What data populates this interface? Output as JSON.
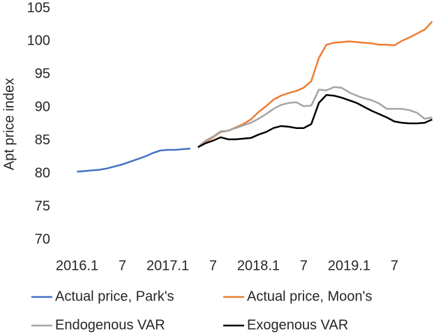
{
  "chart_data": {
    "type": "line",
    "y_label": "Apt price index",
    "categories": [
      "2016.1",
      null,
      null,
      null,
      null,
      null,
      "7",
      null,
      null,
      null,
      null,
      null,
      "2017.1",
      null,
      null,
      null,
      null,
      null,
      "7",
      null,
      null,
      null,
      null,
      null,
      "2018.1",
      null,
      null,
      null,
      null,
      null,
      "7",
      null,
      null,
      null,
      null,
      null,
      "2019.1",
      null,
      null,
      null,
      null,
      null,
      "7",
      null,
      null,
      null,
      null,
      null
    ],
    "ylim": [
      70,
      105
    ],
    "yticks": [
      70,
      75,
      80,
      85,
      90,
      95,
      100,
      105
    ],
    "grid": false,
    "series": [
      {
        "name": "Actual price, Park's",
        "color": "#4472c4",
        "values": [
          80.3,
          80.4,
          80.5,
          80.6,
          80.8,
          81.1,
          81.4,
          81.8,
          82.2,
          82.6,
          83.1,
          83.5,
          83.6,
          83.6,
          83.7,
          83.8,
          null,
          null,
          null,
          null,
          null,
          null,
          null,
          null,
          null,
          null,
          null,
          null,
          null,
          null,
          null,
          null,
          null,
          null,
          null,
          null,
          null,
          null,
          null,
          null,
          null,
          null,
          null,
          null,
          null,
          null,
          null,
          null
        ]
      },
      {
        "name": "Actual price, Moon's",
        "color": "#ed7d31",
        "values": [
          null,
          null,
          null,
          null,
          null,
          null,
          null,
          null,
          null,
          null,
          null,
          null,
          null,
          null,
          null,
          null,
          84.0,
          84.8,
          85.5,
          86.3,
          86.5,
          87.0,
          87.5,
          88.2,
          89.3,
          90.2,
          91.2,
          91.8,
          92.2,
          92.5,
          93.0,
          94.0,
          97.5,
          99.5,
          99.8,
          99.9,
          100.0,
          99.9,
          99.8,
          99.7,
          99.5,
          99.5,
          99.4,
          100.1,
          100.6,
          101.2,
          101.8,
          103.0
        ]
      },
      {
        "name": "Endogenous VAR",
        "color": "#a5a5a5",
        "values": [
          null,
          null,
          null,
          null,
          null,
          null,
          null,
          null,
          null,
          null,
          null,
          null,
          null,
          null,
          null,
          null,
          84.0,
          85.0,
          85.6,
          86.4,
          86.5,
          86.9,
          87.3,
          87.7,
          88.3,
          89.0,
          89.8,
          90.4,
          90.7,
          90.8,
          90.2,
          90.3,
          92.7,
          92.6,
          93.1,
          93.0,
          92.3,
          91.8,
          91.4,
          91.1,
          90.6,
          89.8,
          89.8,
          89.8,
          89.6,
          89.2,
          88.3,
          88.5
        ]
      },
      {
        "name": "Exogenous VAR",
        "color": "#000000",
        "values": [
          null,
          null,
          null,
          null,
          null,
          null,
          null,
          null,
          null,
          null,
          null,
          null,
          null,
          null,
          null,
          null,
          84.0,
          84.6,
          85.0,
          85.5,
          85.2,
          85.2,
          85.3,
          85.4,
          85.9,
          86.3,
          86.9,
          87.2,
          87.1,
          86.9,
          86.9,
          87.5,
          90.7,
          91.9,
          91.8,
          91.5,
          91.1,
          90.7,
          90.1,
          89.5,
          89.0,
          88.5,
          87.9,
          87.7,
          87.6,
          87.6,
          87.7,
          88.2
        ]
      }
    ]
  }
}
